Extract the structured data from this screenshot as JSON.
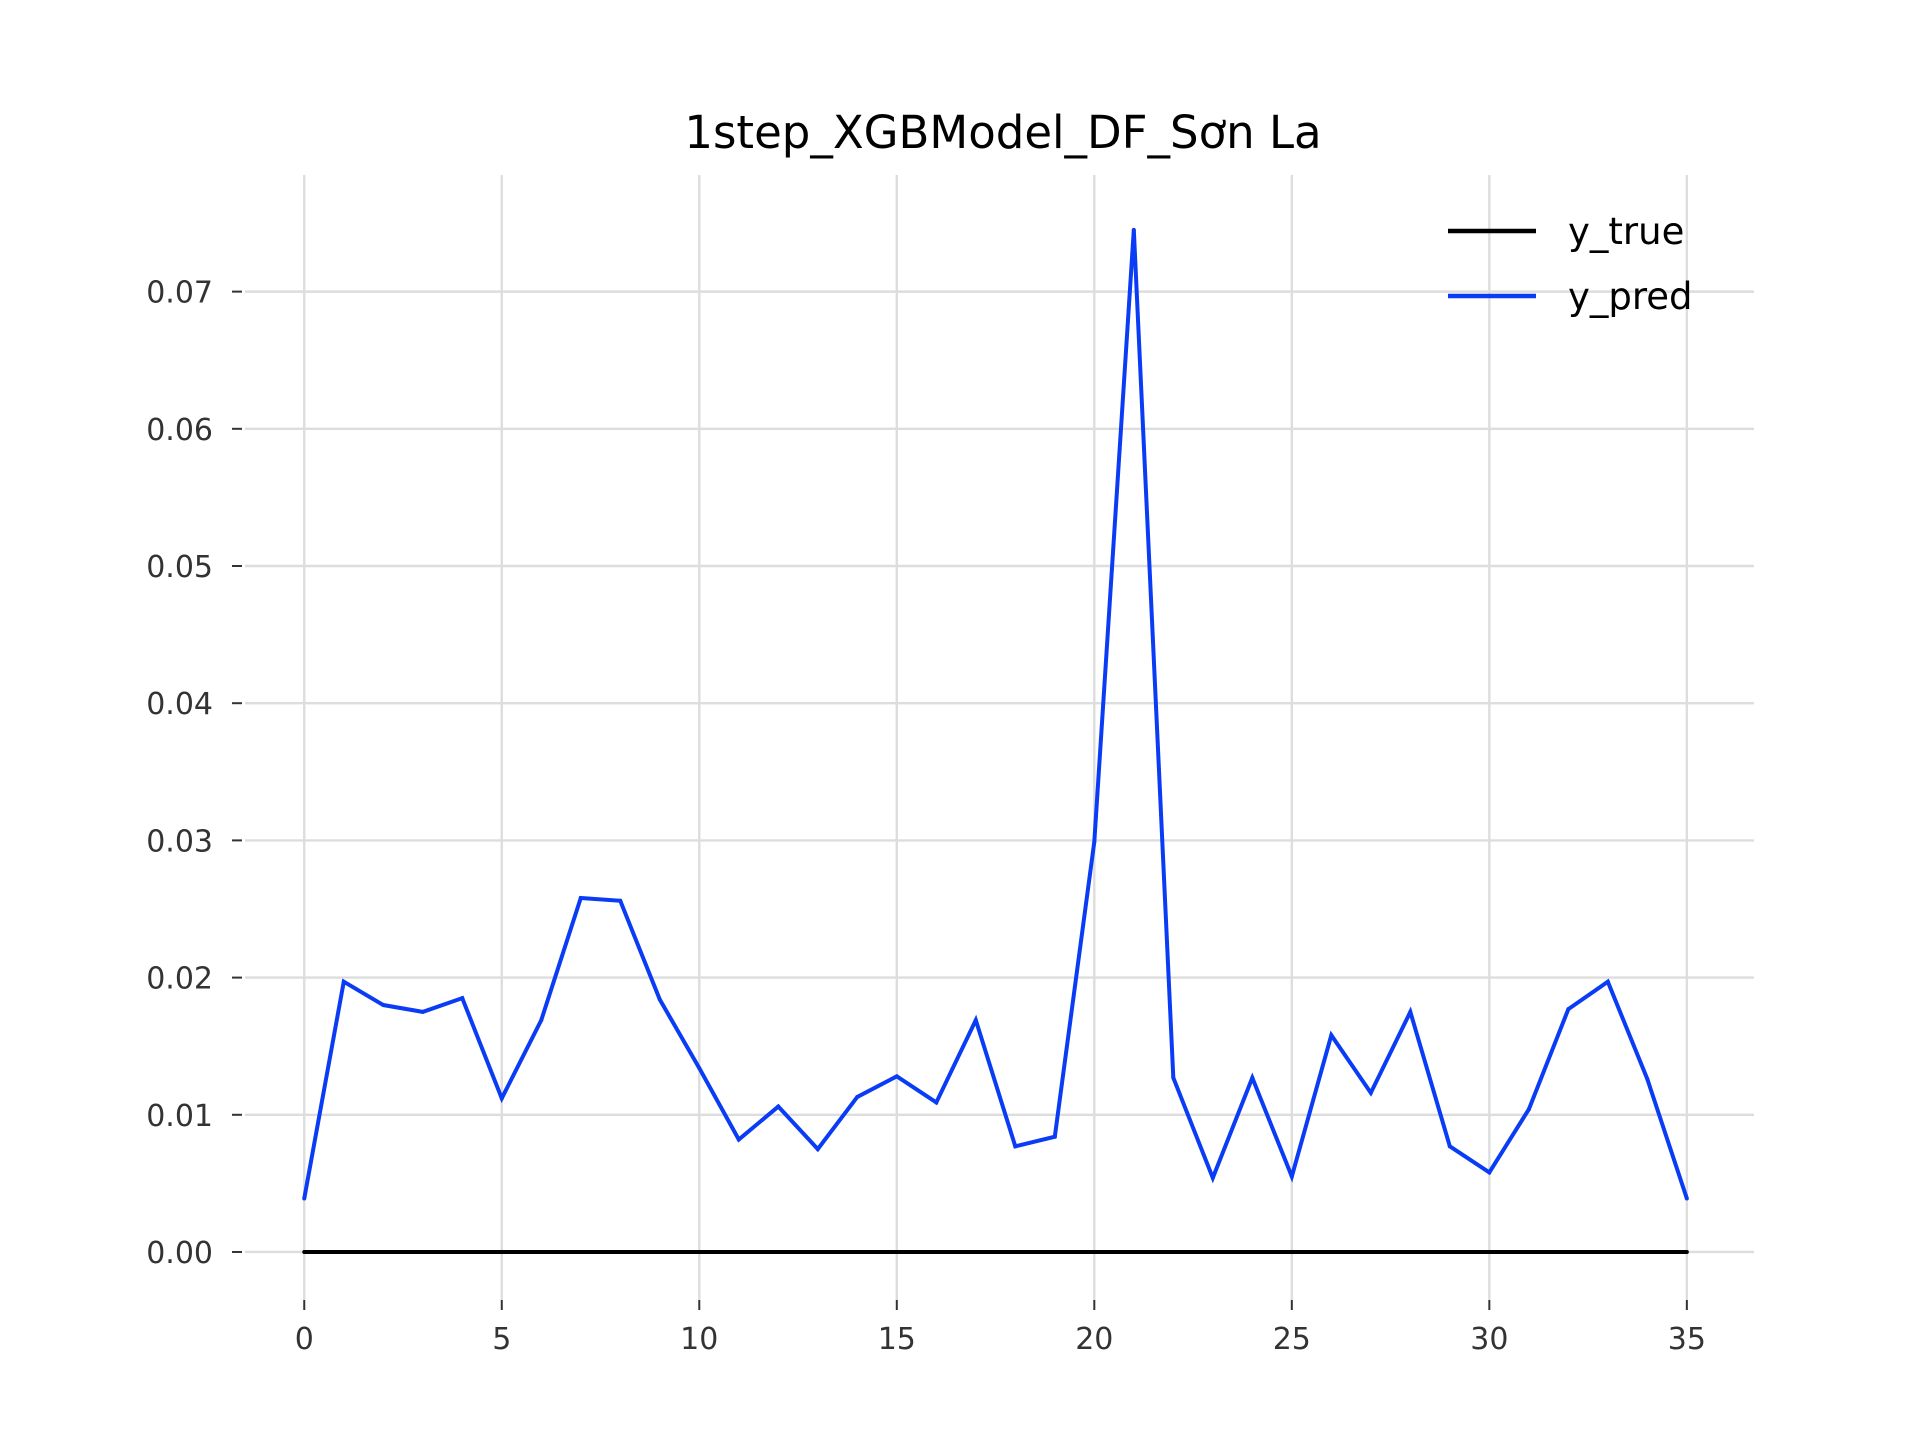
{
  "chart_data": {
    "type": "line",
    "title": "1step_XGBModel_DF_Sơn La",
    "xlabel": "",
    "ylabel": "",
    "xlim": [
      -1.5,
      36.7
    ],
    "ylim": [
      -0.0035,
      0.0785
    ],
    "x_ticks": [
      0,
      5,
      10,
      15,
      20,
      25,
      30,
      35
    ],
    "x_tick_labels": [
      "0",
      "5",
      "10",
      "15",
      "20",
      "25",
      "30",
      "35"
    ],
    "y_ticks": [
      0.0,
      0.01,
      0.02,
      0.03,
      0.04,
      0.05,
      0.06,
      0.07
    ],
    "y_tick_labels": [
      "0.00",
      "0.01",
      "0.02",
      "0.03",
      "0.04",
      "0.05",
      "0.06",
      "0.07"
    ],
    "grid": true,
    "legend_position": "top-right",
    "x": [
      0,
      1,
      2,
      3,
      4,
      5,
      6,
      7,
      8,
      9,
      10,
      11,
      12,
      13,
      14,
      15,
      16,
      17,
      18,
      19,
      20,
      21,
      22,
      23,
      24,
      25,
      26,
      27,
      28,
      29,
      30,
      31,
      32,
      33,
      34,
      35
    ],
    "series": [
      {
        "name": "y_true",
        "color": "#000000",
        "values": [
          0,
          0,
          0,
          0,
          0,
          0,
          0,
          0,
          0,
          0,
          0,
          0,
          0,
          0,
          0,
          0,
          0,
          0,
          0,
          0,
          0,
          0,
          0,
          0,
          0,
          0,
          0,
          0,
          0,
          0,
          0,
          0,
          0,
          0,
          0,
          0
        ]
      },
      {
        "name": "y_pred",
        "color": "#0a3cf5",
        "values": [
          0.0039,
          0.0197,
          0.018,
          0.0175,
          0.0185,
          0.0112,
          0.0169,
          0.0258,
          0.0256,
          0.0184,
          0.0134,
          0.0082,
          0.0106,
          0.0075,
          0.0113,
          0.0128,
          0.0109,
          0.0169,
          0.0077,
          0.0084,
          0.0299,
          0.0745,
          0.0127,
          0.0054,
          0.0127,
          0.0055,
          0.0158,
          0.0116,
          0.0175,
          0.0077,
          0.0058,
          0.0104,
          0.0177,
          0.0197,
          0.0126,
          0.0039
        ]
      }
    ]
  }
}
